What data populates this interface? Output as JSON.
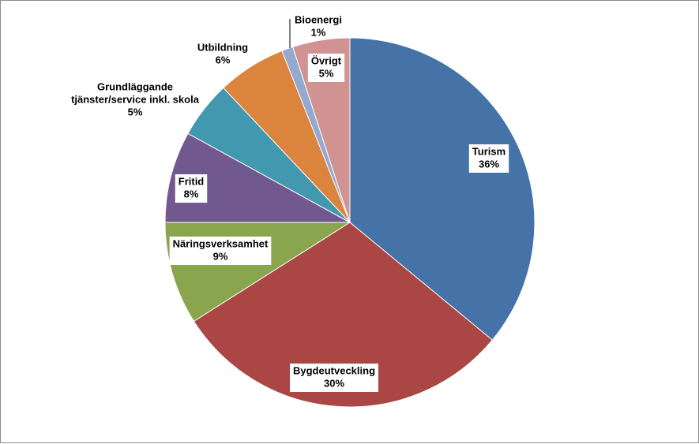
{
  "chart_data": {
    "type": "pie",
    "start_angle_deg": 0,
    "direction": "clockwise",
    "slices": [
      {
        "label": "Turism",
        "value": 36,
        "value_text": "36%",
        "color": "#4572a7"
      },
      {
        "label": "Bygdeutveckling",
        "value": 30,
        "value_text": "30%",
        "color": "#aa4643"
      },
      {
        "label": "Näringsverksamhet",
        "value": 9,
        "value_text": "9%",
        "color": "#89a54e"
      },
      {
        "label": "Fritid",
        "value": 8,
        "value_text": "8%",
        "color": "#71588f"
      },
      {
        "label": "Grundläggande tjänster/service inkl. skola",
        "label_lines": [
          "Grundläggande",
          "tjänster/service inkl. skola"
        ],
        "value": 5,
        "value_text": "5%",
        "color": "#4198af"
      },
      {
        "label": "Utbildning",
        "value": 6,
        "value_text": "6%",
        "color": "#db843d"
      },
      {
        "label": "Bioenergi",
        "value": 1,
        "value_text": "1%",
        "color": "#93a9cf"
      },
      {
        "label": "Övrigt",
        "value": 5,
        "value_text": "5%",
        "color": "#d19392"
      }
    ],
    "legend": "none",
    "labels": "category and percent"
  }
}
